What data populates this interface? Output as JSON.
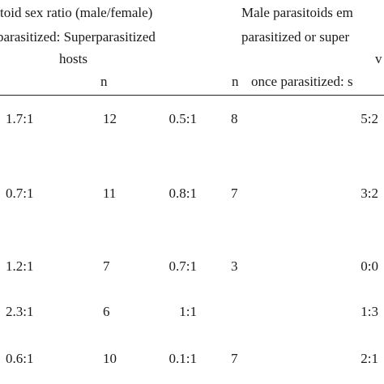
{
  "header": {
    "sex_ratio_title": "toid sex ratio (male/female)",
    "sex_ratio_sub": "parasitized: Superparasitized",
    "sex_ratio_hosts": "hosts",
    "n_label_1": "n",
    "males_title": "Male parasitoids em",
    "males_sub": "parasitized or super",
    "males_sub_tail": "v",
    "n_label_2": "n",
    "once_parasitized": "once parasitized: s"
  },
  "rows": [
    {
      "ratio_single": "1.7:1",
      "n1": "12",
      "ratio_super": "0.5:1",
      "n2": "8",
      "emerged": "5:2"
    },
    {
      "ratio_single": "0.7:1",
      "n1": "11",
      "ratio_super": "0.8:1",
      "n2": "7",
      "emerged": "3:2"
    },
    {
      "ratio_single": "1.2:1",
      "n1": "7",
      "ratio_super": "0.7:1",
      "n2": "3",
      "emerged": "0:0"
    },
    {
      "ratio_single": "2.3:1",
      "n1": "6",
      "ratio_super": "1:1",
      "n2": "",
      "emerged": "1:3"
    },
    {
      "ratio_single": "0.6:1",
      "n1": "10",
      "ratio_super": "0.1:1",
      "n2": "7",
      "emerged": "2:1"
    }
  ]
}
